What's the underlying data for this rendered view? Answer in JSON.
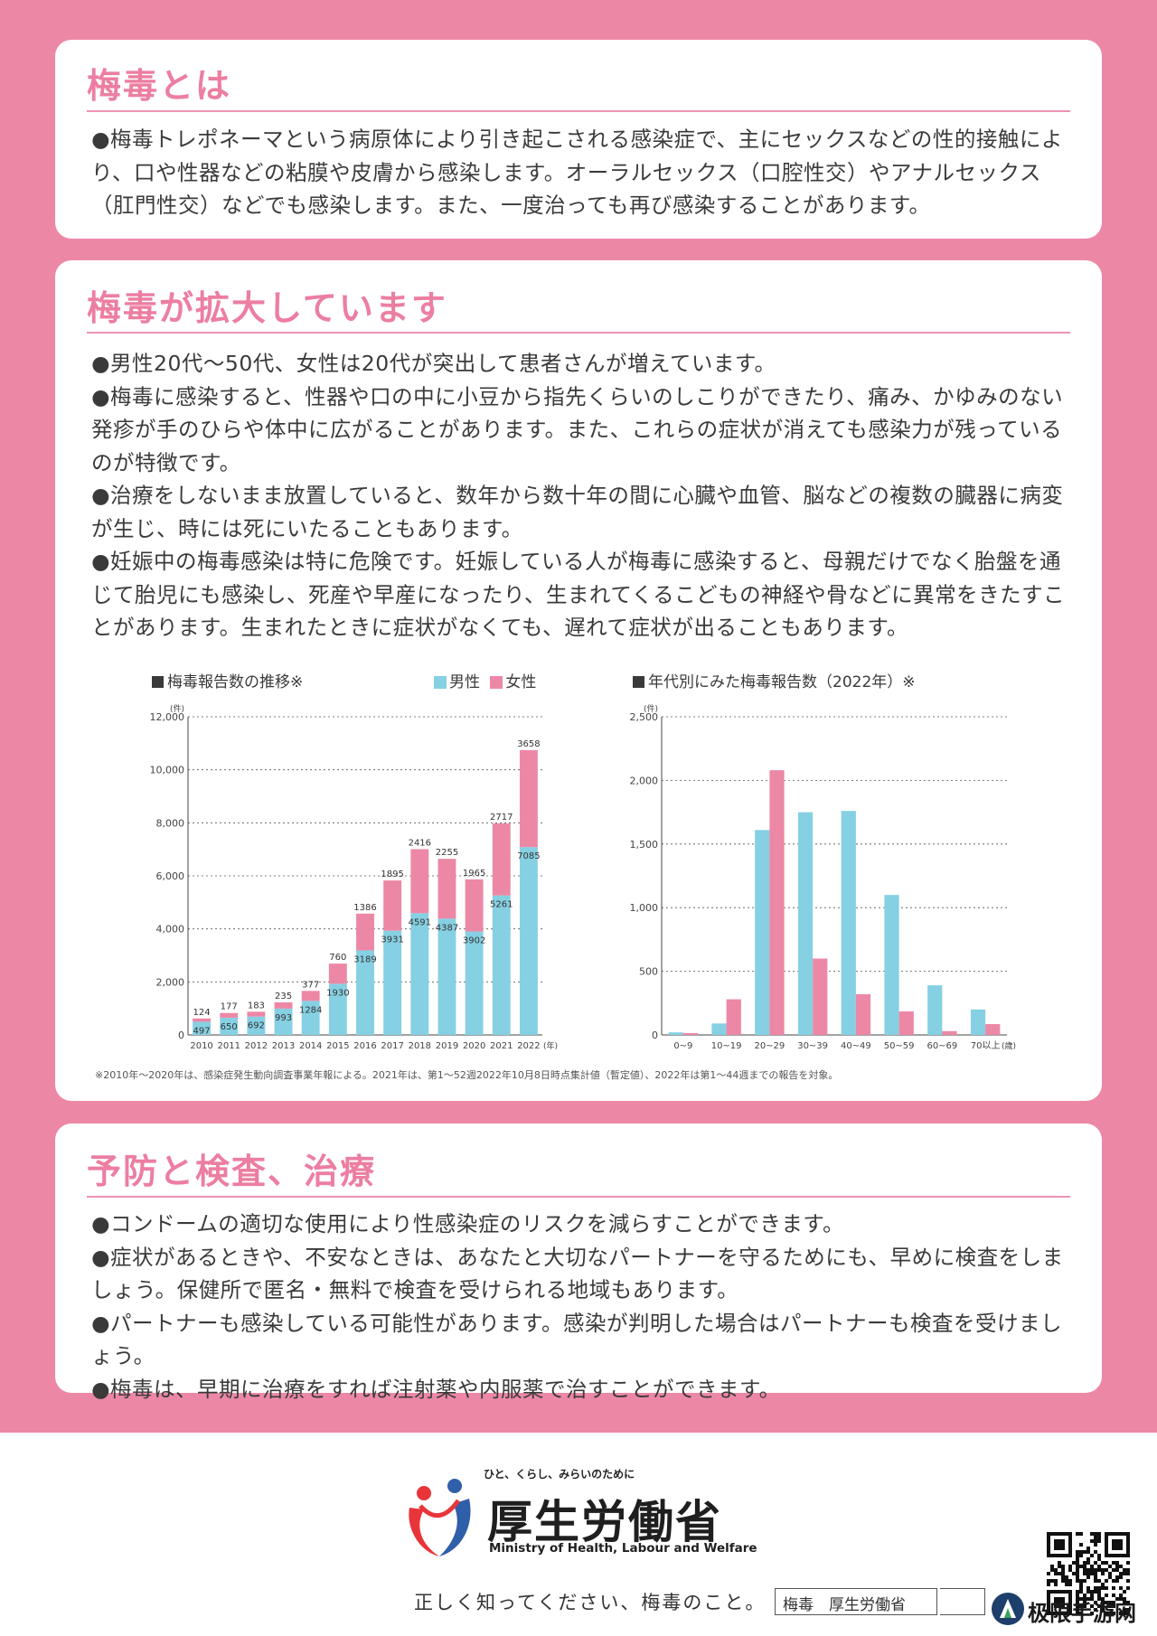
{
  "sections": {
    "about": {
      "title": "梅毒とは",
      "paragraph": "●梅毒トレポネーマという病原体により引き起こされる感染症で、主にセックスなどの性的接触により、口や性器などの粘膜や皮膚から感染します。オーラルセックス（口腔性交）やアナルセックス（肛門性交）などでも感染します。また、一度治っても再び感染することがあります。"
    },
    "spread": {
      "title": "梅毒が拡大しています",
      "paragraphs": [
        "●男性20代～50代、女性は20代が突出して患者さんが増えています。",
        "●梅毒に感染すると、性器や口の中に小豆から指先くらいのしこりができたり、痛み、かゆみのない発疹が手のひらや体中に広がることがあります。また、これらの症状が消えても感染力が残っているのが特徴です。",
        "●治療をしないまま放置していると、数年から数十年の間に心臓や血管、脳などの複数の臓器に病変が生じ、時には死にいたることもあります。",
        "●妊娠中の梅毒感染は特に危険です。妊娠している人が梅毒に感染すると、母親だけでなく胎盤を通じて胎児にも感染し、死産や早産になったり、生まれてくるこどもの神経や骨などに異常をきたすことがあります。生まれたときに症状がなくても、遅れて症状が出ることもあります。"
      ],
      "footnote": "※2010年～2020年は、感染症発生動向調査事業年報による。2021年は、第1～52週2022年10月8日時点集計値（暫定値）、2022年は第1～44週までの報告を対象。"
    },
    "prevention": {
      "title": "予防と検査、治療",
      "paragraphs": [
        "●コンドームの適切な使用により性感染症のリスクを減らすことができます。",
        "●症状があるときや、不安なときは、あなたと大切なパートナーを守るためにも、早めに検査をしましょう。保健所で匿名・無料で検査を受けられる地域もあります。",
        "●パートナーも感染している可能性があります。感染が判明した場合はパートナーも検査を受けましょう。",
        "●梅毒は、早期に治療をすれば注射薬や内服薬で治すことができます。"
      ]
    }
  },
  "chart_data": [
    {
      "type": "bar",
      "stacked": true,
      "title": "梅毒報告数の推移※",
      "ylabel": "(件)",
      "xunit": "(年)",
      "categories": [
        "2010",
        "2011",
        "2012",
        "2013",
        "2014",
        "2015",
        "2016",
        "2017",
        "2018",
        "2019",
        "2020",
        "2021",
        "2022"
      ],
      "series": [
        {
          "name": "男性",
          "color": "#86d0e3",
          "values": [
            497,
            650,
            692,
            993,
            1284,
            1930,
            3189,
            3931,
            4591,
            4387,
            3902,
            5261,
            7085
          ]
        },
        {
          "name": "女性",
          "color": "#ec88a6",
          "values": [
            124,
            177,
            183,
            235,
            377,
            760,
            1386,
            1895,
            2416,
            2255,
            1965,
            2717,
            3658
          ]
        }
      ],
      "yticks": [
        "0",
        "2,000",
        "4,000",
        "6,000",
        "8,000",
        "10,000",
        "12,000"
      ],
      "ylim": [
        0,
        12000
      ],
      "grid": true,
      "legend": "top-right"
    },
    {
      "type": "bar",
      "stacked": false,
      "title": "年代別にみた梅毒報告数（2022年）※",
      "ylabel": "(件)",
      "xunit": "(歳)",
      "categories": [
        "0~9",
        "10~19",
        "20~29",
        "30~39",
        "40~49",
        "50~59",
        "60~69",
        "70以上"
      ],
      "series": [
        {
          "name": "男性",
          "color": "#86d0e3",
          "values": [
            20,
            90,
            1610,
            1750,
            1760,
            1100,
            390,
            200
          ]
        },
        {
          "name": "女性",
          "color": "#ec88a6",
          "values": [
            15,
            280,
            2080,
            600,
            320,
            185,
            30,
            85
          ]
        }
      ],
      "yticks": [
        "0",
        "500",
        "1,000",
        "1,500",
        "2,000",
        "2,500"
      ],
      "ylim": [
        0,
        2500
      ],
      "grid": true
    }
  ],
  "footer": {
    "logo_tagline": "ひと、くらし、みらいのために",
    "ministry_name": "厚生労働省",
    "ministry_en": "Ministry of Health, Labour and Welfare",
    "tagline": "正しく知ってください、梅毒のこと。",
    "search_text": "梅毒　厚生労働省",
    "watermark": "极限手游网"
  },
  "colors": {
    "pink": "#ec88a6",
    "blue": "#86d0e3",
    "title_pink": "#ec7ea1"
  }
}
